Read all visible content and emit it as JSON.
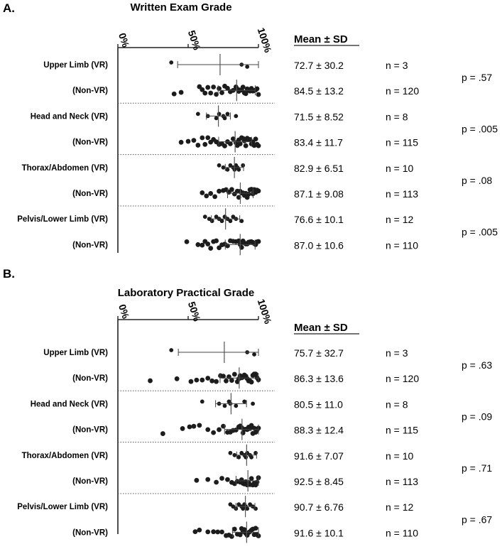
{
  "chart_data": [
    {
      "panel": "A.",
      "type": "scatter",
      "title": "Written Exam Grade",
      "x_ticks": [
        "0%",
        "50%",
        "100%"
      ],
      "xlim": [
        0,
        100
      ],
      "stats_header": "Mean ± SD",
      "rows": [
        {
          "label": "Upper Limb (VR)",
          "mean": 72.7,
          "sd": 30.2,
          "stat": "72.7 ± 30.2",
          "n": "n = 3",
          "points": [
            38,
            88,
            92
          ]
        },
        {
          "label": "(Non-VR)",
          "mean": 84.5,
          "sd": 13.2,
          "stat": "84.5 ± 13.2",
          "n": "n = 120",
          "points": [
            40,
            45,
            58,
            60,
            62,
            64,
            66,
            68,
            70,
            72,
            74,
            76,
            78,
            80,
            82,
            84,
            85,
            86,
            87,
            88,
            89,
            90,
            91,
            92,
            93,
            94,
            95,
            96,
            97,
            98,
            99,
            100
          ]
        },
        {
          "label": "Head and Neck (VR)",
          "mean": 71.5,
          "sd": 8.52,
          "stat": "71.5 ± 8.52",
          "n": "n = 8",
          "points": [
            57,
            64,
            70,
            72,
            75,
            76,
            78,
            84
          ]
        },
        {
          "label": "(Non-VR)",
          "mean": 83.4,
          "sd": 11.7,
          "stat": "83.4 ± 11.7",
          "n": "n = 115",
          "points": [
            45,
            50,
            54,
            57,
            60,
            62,
            64,
            66,
            68,
            70,
            72,
            74,
            76,
            78,
            80,
            82,
            84,
            85,
            86,
            87,
            88,
            89,
            90,
            91,
            92,
            93,
            94,
            95,
            96,
            97,
            98,
            99,
            100
          ]
        },
        {
          "label": "Thorax/Abdomen (VR)",
          "mean": 82.9,
          "sd": 6.51,
          "stat": "82.9 ± 6.51",
          "n": "n = 10",
          "points": [
            72,
            75,
            78,
            80,
            82,
            83,
            84,
            85,
            86,
            89
          ]
        },
        {
          "label": "(Non-VR)",
          "mean": 87.1,
          "sd": 9.08,
          "stat": "87.1 ± 9.08",
          "n": "n = 113",
          "points": [
            60,
            63,
            66,
            69,
            72,
            75,
            77,
            79,
            81,
            83,
            85,
            86,
            87,
            88,
            89,
            90,
            91,
            92,
            93,
            94,
            95,
            96,
            97,
            98,
            99,
            100
          ]
        },
        {
          "label": "Pelvis/Lower Limb (VR)",
          "mean": 76.6,
          "sd": 10.1,
          "stat": "76.6 ± 10.1",
          "n": "n = 12",
          "points": [
            62,
            65,
            67,
            70,
            72,
            74,
            76,
            78,
            80,
            82,
            84,
            88
          ]
        },
        {
          "label": "(Non-VR)",
          "mean": 87.0,
          "sd": 10.6,
          "stat": "87.0 ± 10.6",
          "n": "n = 110",
          "points": [
            49,
            57,
            60,
            62,
            64,
            66,
            68,
            70,
            72,
            74,
            76,
            78,
            80,
            82,
            84,
            86,
            87,
            88,
            89,
            90,
            91,
            92,
            93,
            94,
            95,
            96,
            97,
            98,
            99,
            100
          ]
        }
      ],
      "pvalues": [
        "p = .57",
        "p = .005",
        "p = .08",
        "p = .005"
      ]
    },
    {
      "panel": "B.",
      "type": "scatter",
      "title": "Laboratory Practical Grade",
      "x_ticks": [
        "0%",
        "50%",
        "100%"
      ],
      "xlim": [
        0,
        100
      ],
      "stats_header": "Mean ± SD",
      "rows": [
        {
          "label": "Upper Limb (VR)",
          "mean": 75.7,
          "sd": 32.7,
          "stat": "75.7 ± 32.7",
          "n": "n = 3",
          "points": [
            38,
            92,
            97
          ]
        },
        {
          "label": "(Non-VR)",
          "mean": 86.3,
          "sd": 13.6,
          "stat": "86.3 ± 13.6",
          "n": "n = 120",
          "points": [
            23,
            42,
            52,
            56,
            60,
            64,
            67,
            70,
            73,
            75,
            77,
            79,
            81,
            83,
            85,
            86,
            87,
            88,
            89,
            90,
            91,
            92,
            93,
            94,
            95,
            96,
            97,
            98,
            99,
            100
          ]
        },
        {
          "label": "Head and Neck (VR)",
          "mean": 80.5,
          "sd": 11.0,
          "stat": "80.5 ± 11.0",
          "n": "n = 8",
          "points": [
            60,
            72,
            76,
            79,
            80,
            84,
            90,
            96
          ]
        },
        {
          "label": "(Non-VR)",
          "mean": 88.3,
          "sd": 12.4,
          "stat": "88.3 ± 12.4",
          "n": "n = 115",
          "points": [
            32,
            46,
            51,
            54,
            58,
            64,
            68,
            72,
            75,
            78,
            80,
            82,
            84,
            86,
            87,
            88,
            89,
            90,
            91,
            92,
            93,
            94,
            95,
            96,
            97,
            98,
            99,
            100
          ]
        },
        {
          "label": "Thorax/Abdomen (VR)",
          "mean": 91.6,
          "sd": 7.07,
          "stat": "91.6 ± 7.07",
          "n": "n = 10",
          "points": [
            80,
            83,
            86,
            88,
            90,
            91,
            92,
            94,
            95,
            98
          ]
        },
        {
          "label": "(Non-VR)",
          "mean": 92.5,
          "sd": 8.45,
          "stat": "92.5 ± 8.45",
          "n": "n = 113",
          "points": [
            56,
            64,
            70,
            74,
            78,
            81,
            83,
            85,
            87,
            88,
            89,
            90,
            91,
            92,
            93,
            94,
            95,
            96,
            97,
            98,
            99,
            100
          ]
        },
        {
          "label": "Pelvis/Lower Limb (VR)",
          "mean": 90.7,
          "sd": 6.76,
          "stat": "90.7 ± 6.76",
          "n": "n = 12",
          "points": [
            80,
            82,
            84,
            86,
            88,
            89,
            90,
            91,
            92,
            94,
            96,
            98
          ]
        },
        {
          "label": "(Non-VR)",
          "mean": 91.6,
          "sd": 10.1,
          "stat": "91.6 ± 10.1",
          "n": "n = 110",
          "points": [
            55,
            58,
            64,
            68,
            71,
            74,
            77,
            79,
            81,
            83,
            85,
            87,
            88,
            89,
            90,
            91,
            92,
            93,
            94,
            95,
            96,
            97,
            98,
            99,
            100
          ]
        }
      ],
      "pvalues": [
        "p = .63",
        "p = .09",
        "p = .71",
        "p = .67"
      ]
    }
  ]
}
